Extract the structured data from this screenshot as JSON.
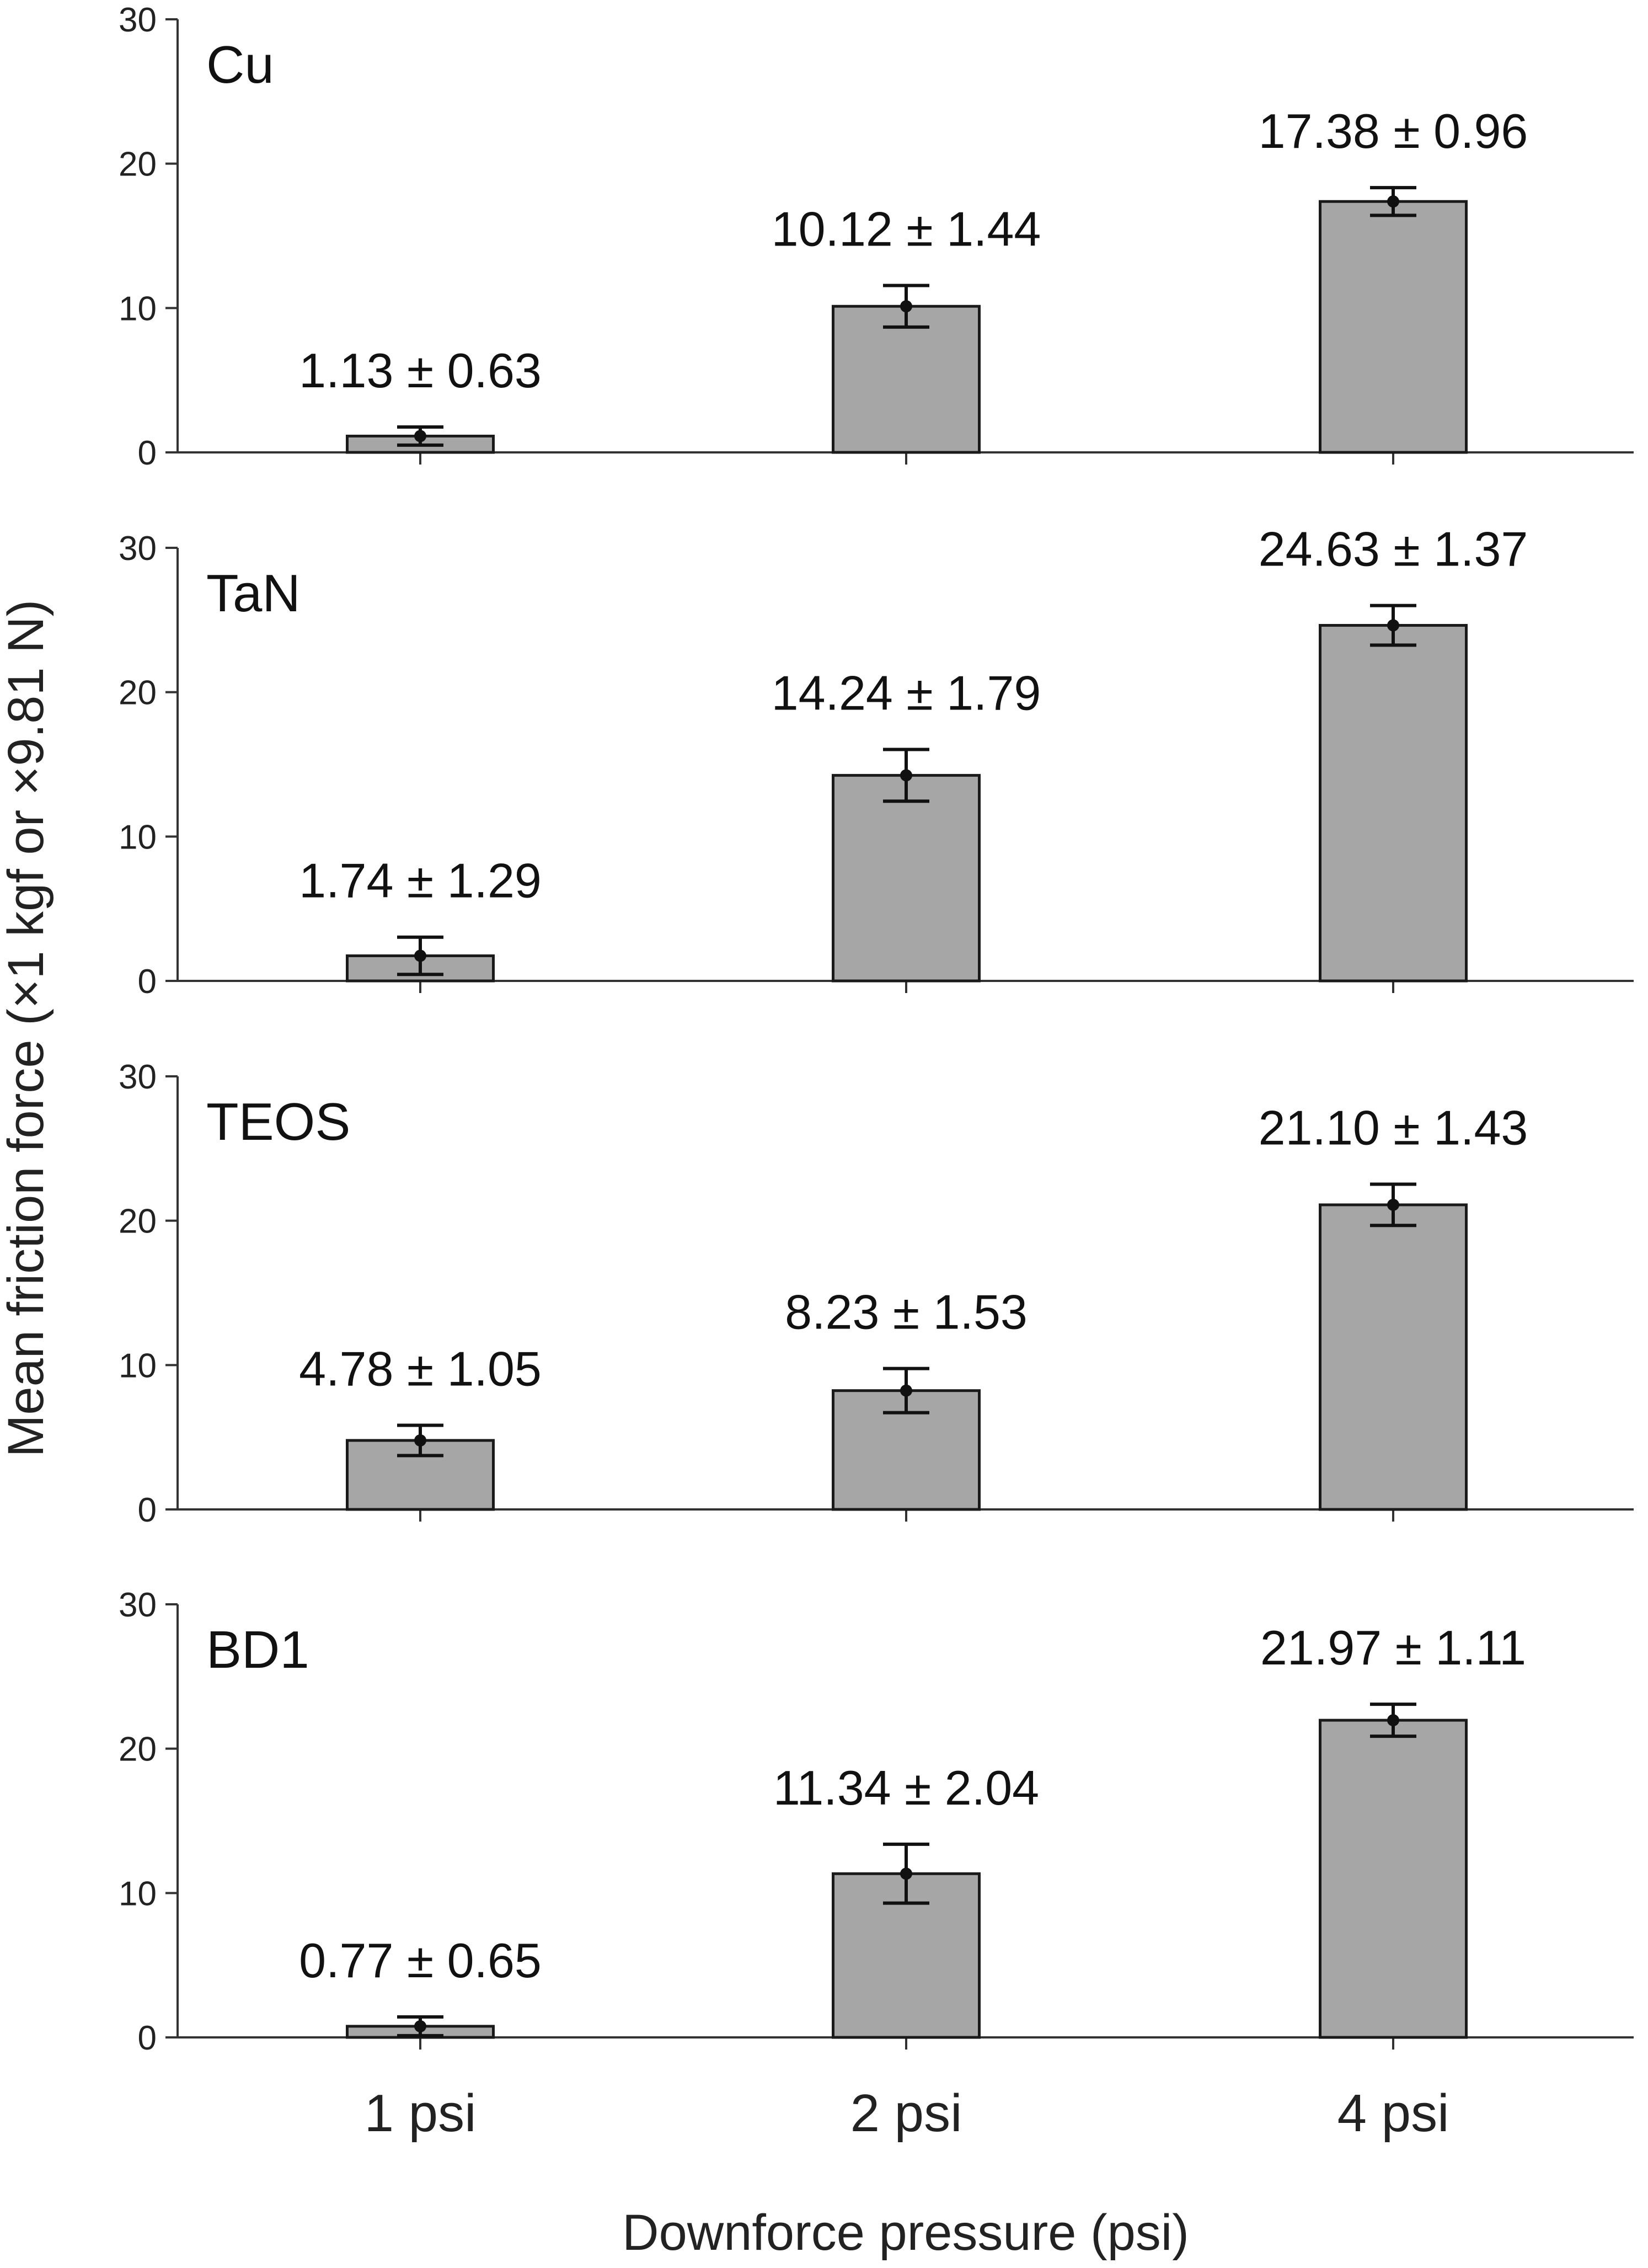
{
  "chart_data": {
    "type": "bar",
    "categories": [
      "1 psi",
      "2 psi",
      "4 psi"
    ],
    "xlabel": "Downforce pressure (psi)",
    "ylabel": "Mean friction force (×1 kgf or ×9.81 N)",
    "ylim": [
      0,
      30
    ],
    "yticks": [
      0,
      10,
      20,
      30
    ],
    "colors": {
      "bar": "#a6a6a6",
      "stroke": "#1a1a1a"
    },
    "panels": [
      {
        "name": "Cu",
        "values": [
          1.13,
          10.12,
          17.38
        ],
        "errors": [
          0.63,
          1.44,
          0.96
        ],
        "labels": [
          "1.13 ± 0.63",
          "10.12 ± 1.44",
          "17.38 ± 0.96"
        ]
      },
      {
        "name": "TaN",
        "values": [
          1.74,
          14.24,
          24.63
        ],
        "errors": [
          1.29,
          1.79,
          1.37
        ],
        "labels": [
          "1.74 ± 1.29",
          "14.24 ± 1.79",
          "24.63 ± 1.37"
        ]
      },
      {
        "name": "TEOS",
        "values": [
          4.78,
          8.23,
          21.1
        ],
        "errors": [
          1.05,
          1.53,
          1.43
        ],
        "labels": [
          "4.78 ± 1.05",
          "8.23 ± 1.53",
          "21.10 ± 1.43"
        ]
      },
      {
        "name": "BD1",
        "values": [
          0.77,
          11.34,
          21.97
        ],
        "errors": [
          0.65,
          2.04,
          1.11
        ],
        "labels": [
          "0.77 ± 0.65",
          "11.34 ± 2.04",
          "21.97 ± 1.11"
        ]
      }
    ]
  }
}
